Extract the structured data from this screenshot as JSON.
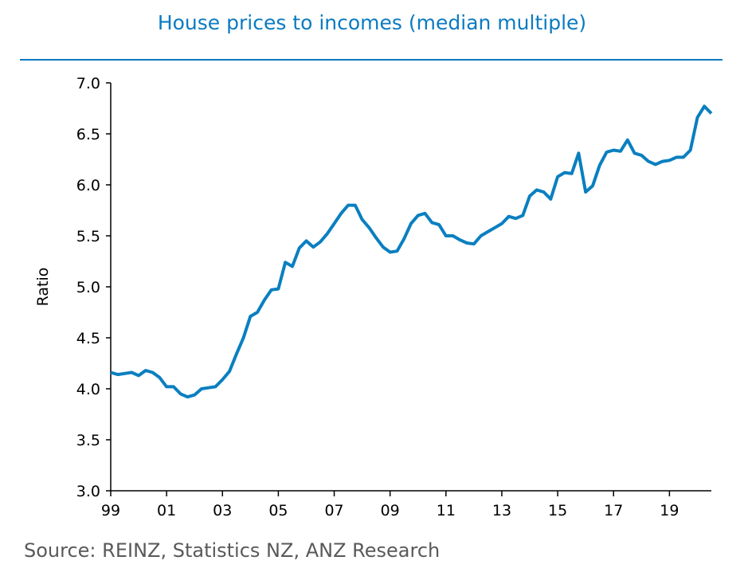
{
  "chart_data": {
    "type": "line",
    "title": "House prices to incomes (median multiple)",
    "xlabel": "",
    "ylabel": "Ratio",
    "source": "Source: REINZ, Statistics NZ, ANZ Research",
    "ylim": [
      3.0,
      7.0
    ],
    "yticks": [
      "3.0",
      "3.5",
      "4.0",
      "4.5",
      "5.0",
      "5.5",
      "6.0",
      "6.5",
      "7.0"
    ],
    "xticks": [
      "99",
      "01",
      "03",
      "05",
      "07",
      "09",
      "11",
      "13",
      "15",
      "17",
      "19"
    ],
    "x_start": "1999 Q1",
    "x_frequency": "quarterly",
    "line_color": "#0a7fc0",
    "series": [
      {
        "name": "Median multiple",
        "values": [
          4.16,
          4.14,
          4.15,
          4.16,
          4.13,
          4.18,
          4.16,
          4.11,
          4.02,
          4.02,
          3.95,
          3.92,
          3.94,
          4.0,
          4.01,
          4.02,
          4.09,
          4.17,
          4.34,
          4.5,
          4.71,
          4.75,
          4.87,
          4.97,
          4.98,
          5.24,
          5.2,
          5.38,
          5.45,
          5.39,
          5.44,
          5.52,
          5.62,
          5.72,
          5.8,
          5.8,
          5.66,
          5.58,
          5.48,
          5.39,
          5.34,
          5.35,
          5.47,
          5.62,
          5.7,
          5.72,
          5.63,
          5.61,
          5.5,
          5.5,
          5.46,
          5.43,
          5.42,
          5.5,
          5.54,
          5.58,
          5.62,
          5.69,
          5.67,
          5.7,
          5.89,
          5.95,
          5.93,
          5.86,
          6.08,
          6.12,
          6.11,
          6.31,
          5.93,
          5.99,
          6.19,
          6.32,
          6.34,
          6.33,
          6.44,
          6.31,
          6.29,
          6.23,
          6.2,
          6.23,
          6.24,
          6.27,
          6.27,
          6.34,
          6.66,
          6.77,
          6.7
        ]
      }
    ]
  }
}
